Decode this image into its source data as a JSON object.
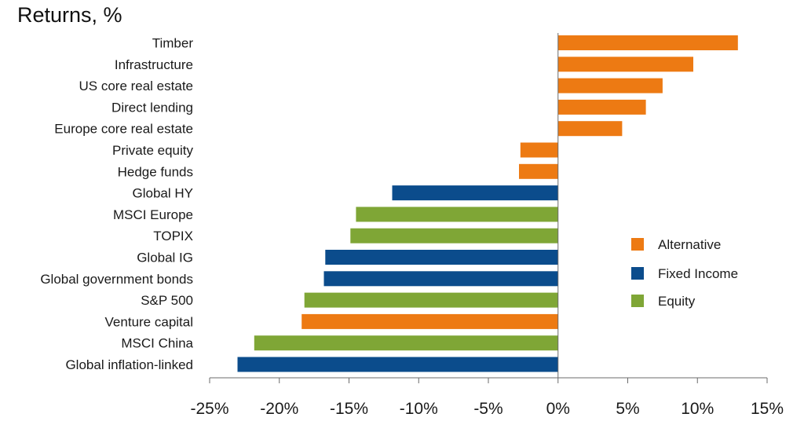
{
  "chart_data": {
    "type": "bar",
    "orientation": "horizontal",
    "title": "Returns, %",
    "xlabel": "",
    "ylabel": "",
    "xlim": [
      -25,
      15
    ],
    "ticks": [
      -25,
      -20,
      -15,
      -10,
      -5,
      0,
      5,
      10,
      15
    ],
    "tick_labels": [
      "-25%",
      "-20%",
      "-15%",
      "-10%",
      "-5%",
      "0%",
      "5%",
      "10%",
      "15%"
    ],
    "grid": false,
    "legend_position": "right",
    "groups": [
      {
        "name": "Alternative",
        "color": "#ED7A13"
      },
      {
        "name": "Fixed Income",
        "color": "#0B4C8C"
      },
      {
        "name": "Equity",
        "color": "#7FA636"
      }
    ],
    "categories": [
      "Timber",
      "Infrastructure",
      "US core real estate",
      "Direct lending",
      "Europe core real estate",
      "Private equity",
      "Hedge funds",
      "Global HY",
      "MSCI Europe",
      "TOPIX",
      "Global IG",
      "Global government bonds",
      "S&P 500",
      "Venture capital",
      "MSCI China",
      "Global inflation-linked"
    ],
    "values": [
      12.9,
      9.7,
      7.5,
      6.3,
      4.6,
      -2.7,
      -2.8,
      -11.9,
      -14.5,
      -14.9,
      -16.7,
      -16.8,
      -18.2,
      -18.4,
      -21.8,
      -23.0
    ],
    "group_of": [
      "Alternative",
      "Alternative",
      "Alternative",
      "Alternative",
      "Alternative",
      "Alternative",
      "Alternative",
      "Fixed Income",
      "Equity",
      "Equity",
      "Fixed Income",
      "Fixed Income",
      "Equity",
      "Alternative",
      "Equity",
      "Fixed Income"
    ]
  }
}
